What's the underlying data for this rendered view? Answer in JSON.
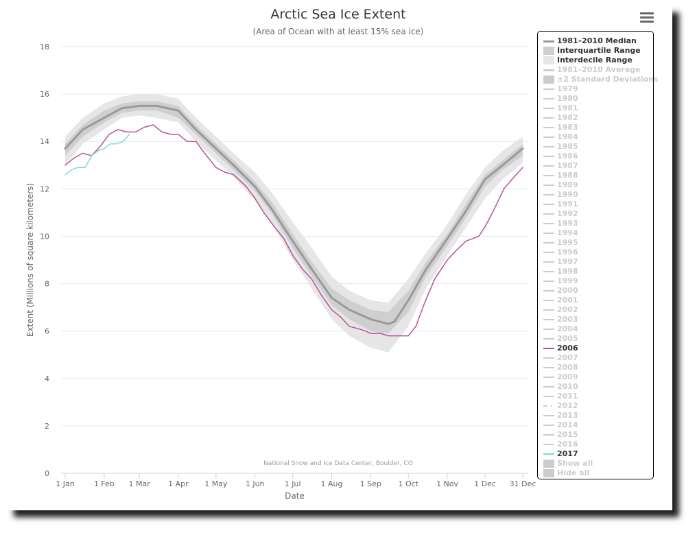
{
  "title": "Arctic Sea Ice Extent",
  "subtitle": "(Area of Ocean with at least 15% sea ice)",
  "credit": "National Snow and Ice Data Center, Boulder, CO",
  "menu_icon": "hamburger-menu-icon",
  "chart_data": {
    "type": "line",
    "xlabel": "Date",
    "ylabel": "Extent (Millions of square kilometers)",
    "ylim": [
      0,
      18
    ],
    "yticks": [
      0,
      2,
      4,
      6,
      8,
      10,
      12,
      14,
      16,
      18
    ],
    "xlim": [
      1,
      365
    ],
    "xticks": [
      {
        "day": 1,
        "label": "1 Jan"
      },
      {
        "day": 32,
        "label": "1 Feb"
      },
      {
        "day": 60,
        "label": "1 Mar"
      },
      {
        "day": 91,
        "label": "1 Apr"
      },
      {
        "day": 121,
        "label": "1 May"
      },
      {
        "day": 152,
        "label": "1 Jun"
      },
      {
        "day": 182,
        "label": "1 Jul"
      },
      {
        "day": 213,
        "label": "1 Aug"
      },
      {
        "day": 244,
        "label": "1 Sep"
      },
      {
        "day": 274,
        "label": "1 Oct"
      },
      {
        "day": 305,
        "label": "1 Nov"
      },
      {
        "day": 335,
        "label": "1 Dec"
      },
      {
        "day": 365,
        "label": "31 Dec"
      }
    ],
    "grid": true,
    "legend_position": "right",
    "median": {
      "name": "1981–2010 Median",
      "color": "#999999",
      "x": [
        1,
        15,
        32,
        46,
        60,
        74,
        91,
        105,
        121,
        135,
        152,
        166,
        182,
        196,
        213,
        227,
        244,
        258,
        263,
        274,
        288,
        305,
        319,
        335,
        349,
        365
      ],
      "y": [
        13.7,
        14.5,
        15.0,
        15.4,
        15.5,
        15.5,
        15.3,
        14.5,
        13.7,
        13.0,
        12.1,
        11.1,
        9.8,
        8.7,
        7.4,
        6.9,
        6.5,
        6.3,
        6.4,
        7.3,
        8.6,
        9.9,
        11.0,
        12.4,
        13.0,
        13.7
      ]
    },
    "interquartile": {
      "name": "Interquartile Range",
      "color": "#cfcfcf",
      "x": [
        1,
        15,
        32,
        46,
        60,
        74,
        91,
        105,
        121,
        135,
        152,
        166,
        182,
        196,
        213,
        227,
        244,
        258,
        274,
        288,
        305,
        319,
        335,
        349,
        365
      ],
      "lower": [
        13.4,
        14.2,
        14.8,
        15.2,
        15.3,
        15.3,
        15.0,
        14.3,
        13.5,
        12.8,
        11.9,
        10.9,
        9.5,
        8.4,
        7.1,
        6.5,
        6.0,
        5.9,
        6.8,
        8.3,
        9.6,
        10.7,
        12.1,
        12.8,
        13.4
      ],
      "upper": [
        13.9,
        14.7,
        15.3,
        15.6,
        15.7,
        15.7,
        15.5,
        14.7,
        13.9,
        13.2,
        12.3,
        11.4,
        10.1,
        9.0,
        7.8,
        7.3,
        6.9,
        6.8,
        7.7,
        8.9,
        10.1,
        11.3,
        12.6,
        13.2,
        13.9
      ]
    },
    "interdecile": {
      "name": "Interdecile Range",
      "color": "#e6e6e6",
      "x": [
        1,
        15,
        32,
        46,
        60,
        74,
        91,
        105,
        121,
        135,
        152,
        166,
        182,
        196,
        213,
        227,
        244,
        258,
        274,
        288,
        305,
        319,
        335,
        349,
        365
      ],
      "lower": [
        13.0,
        13.9,
        14.5,
        15.0,
        15.1,
        15.0,
        14.8,
        14.0,
        13.2,
        12.5,
        11.5,
        10.5,
        9.0,
        7.9,
        6.5,
        5.8,
        5.3,
        5.1,
        6.2,
        7.8,
        9.2,
        10.3,
        11.6,
        12.4,
        13.1
      ],
      "upper": [
        14.2,
        15.0,
        15.6,
        15.9,
        16.0,
        16.0,
        15.8,
        15.0,
        14.2,
        13.5,
        12.7,
        11.8,
        10.6,
        9.6,
        8.3,
        7.7,
        7.3,
        7.2,
        8.2,
        9.3,
        10.5,
        11.7,
        12.9,
        13.6,
        14.2
      ]
    },
    "series": [
      {
        "name": "2006",
        "color": "#b5529c",
        "x": [
          1,
          8,
          15,
          22,
          29,
          36,
          43,
          50,
          57,
          64,
          71,
          78,
          85,
          91,
          98,
          105,
          112,
          121,
          128,
          135,
          145,
          152,
          159,
          166,
          175,
          182,
          190,
          197,
          205,
          213,
          220,
          227,
          234,
          240,
          244,
          252,
          258,
          265,
          274,
          280,
          287,
          295,
          305,
          312,
          320,
          330,
          335,
          341,
          350,
          358,
          365
        ],
        "y": [
          13.0,
          13.3,
          13.5,
          13.4,
          13.8,
          14.3,
          14.5,
          14.4,
          14.4,
          14.6,
          14.7,
          14.4,
          14.3,
          14.3,
          14.0,
          14.0,
          13.5,
          12.9,
          12.7,
          12.6,
          12.1,
          11.6,
          11.0,
          10.5,
          9.9,
          9.2,
          8.6,
          8.2,
          7.5,
          6.9,
          6.6,
          6.2,
          6.1,
          6.0,
          5.9,
          5.9,
          5.8,
          5.8,
          5.8,
          6.2,
          7.2,
          8.2,
          9.0,
          9.4,
          9.8,
          10.0,
          10.4,
          11.0,
          12.0,
          12.5,
          12.9
        ]
      },
      {
        "name": "2017",
        "color": "#7edad3",
        "x": [
          1,
          6,
          11,
          17,
          22,
          27,
          32,
          37,
          42,
          47,
          52
        ],
        "y": [
          12.6,
          12.8,
          12.9,
          12.9,
          13.4,
          13.6,
          13.7,
          13.9,
          13.9,
          14.0,
          14.3
        ]
      }
    ]
  },
  "legend": {
    "items": [
      {
        "label": "1981–2010 Median",
        "kind": "line",
        "color": "#999999",
        "active": true
      },
      {
        "label": "Interquartile Range",
        "kind": "box",
        "color": "#cfcfcf",
        "active": true
      },
      {
        "label": "Interdecile Range",
        "kind": "box",
        "color": "#e6e6e6",
        "active": true
      },
      {
        "label": "1981–2010 Average",
        "kind": "line",
        "color": "#cccccc",
        "active": false
      },
      {
        "label": "±2 Standard Deviations",
        "kind": "box",
        "color": "#cccccc",
        "active": false
      },
      {
        "label": "1979",
        "kind": "thin",
        "color": "#cccccc",
        "active": false
      },
      {
        "label": "1980",
        "kind": "thin",
        "color": "#cccccc",
        "active": false
      },
      {
        "label": "1981",
        "kind": "thin",
        "color": "#cccccc",
        "active": false
      },
      {
        "label": "1982",
        "kind": "thin",
        "color": "#cccccc",
        "active": false
      },
      {
        "label": "1983",
        "kind": "thin",
        "color": "#cccccc",
        "active": false
      },
      {
        "label": "1984",
        "kind": "thin",
        "color": "#cccccc",
        "active": false
      },
      {
        "label": "1985",
        "kind": "thin",
        "color": "#cccccc",
        "active": false
      },
      {
        "label": "1986",
        "kind": "thin",
        "color": "#cccccc",
        "active": false
      },
      {
        "label": "1987",
        "kind": "thin",
        "color": "#cccccc",
        "active": false
      },
      {
        "label": "1988",
        "kind": "thin",
        "color": "#cccccc",
        "active": false
      },
      {
        "label": "1989",
        "kind": "thin",
        "color": "#cccccc",
        "active": false
      },
      {
        "label": "1990",
        "kind": "thin",
        "color": "#cccccc",
        "active": false
      },
      {
        "label": "1991",
        "kind": "thin",
        "color": "#cccccc",
        "active": false
      },
      {
        "label": "1992",
        "kind": "thin",
        "color": "#cccccc",
        "active": false
      },
      {
        "label": "1993",
        "kind": "thin",
        "color": "#cccccc",
        "active": false
      },
      {
        "label": "1994",
        "kind": "thin",
        "color": "#cccccc",
        "active": false
      },
      {
        "label": "1995",
        "kind": "thin",
        "color": "#cccccc",
        "active": false
      },
      {
        "label": "1996",
        "kind": "thin",
        "color": "#cccccc",
        "active": false
      },
      {
        "label": "1997",
        "kind": "thin",
        "color": "#cccccc",
        "active": false
      },
      {
        "label": "1998",
        "kind": "thin",
        "color": "#cccccc",
        "active": false
      },
      {
        "label": "1999",
        "kind": "thin",
        "color": "#cccccc",
        "active": false
      },
      {
        "label": "2000",
        "kind": "thin",
        "color": "#cccccc",
        "active": false
      },
      {
        "label": "2001",
        "kind": "thin",
        "color": "#cccccc",
        "active": false
      },
      {
        "label": "2002",
        "kind": "thin",
        "color": "#cccccc",
        "active": false
      },
      {
        "label": "2003",
        "kind": "thin",
        "color": "#cccccc",
        "active": false
      },
      {
        "label": "2004",
        "kind": "thin",
        "color": "#cccccc",
        "active": false
      },
      {
        "label": "2005",
        "kind": "thin",
        "color": "#cccccc",
        "active": false
      },
      {
        "label": "2006",
        "kind": "thin",
        "color": "#b5529c",
        "active": true
      },
      {
        "label": "2007",
        "kind": "thin",
        "color": "#cccccc",
        "active": false
      },
      {
        "label": "2008",
        "kind": "thin",
        "color": "#cccccc",
        "active": false
      },
      {
        "label": "2009",
        "kind": "thin",
        "color": "#cccccc",
        "active": false
      },
      {
        "label": "2010",
        "kind": "thin",
        "color": "#cccccc",
        "active": false
      },
      {
        "label": "2011",
        "kind": "thin",
        "color": "#cccccc",
        "active": false
      },
      {
        "label": "2012",
        "kind": "dashed",
        "color": "#cccccc",
        "active": false
      },
      {
        "label": "2013",
        "kind": "thin",
        "color": "#cccccc",
        "active": false
      },
      {
        "label": "2014",
        "kind": "thin",
        "color": "#cccccc",
        "active": false
      },
      {
        "label": "2015",
        "kind": "thin",
        "color": "#cccccc",
        "active": false
      },
      {
        "label": "2016",
        "kind": "thin",
        "color": "#cccccc",
        "active": false
      },
      {
        "label": "2017",
        "kind": "thin",
        "color": "#7edad3",
        "active": true
      },
      {
        "label": "Show all",
        "kind": "box",
        "color": "#cccccc",
        "active": false
      },
      {
        "label": "Hide all",
        "kind": "box",
        "color": "#cccccc",
        "active": false
      }
    ]
  }
}
